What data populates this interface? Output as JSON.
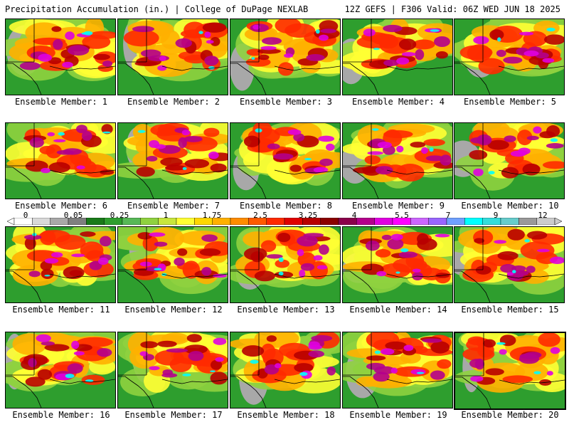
{
  "header": {
    "left_title": "Precipitation Accumulation (in.) | College of DuPage NEXLAB",
    "right_title": "12Z GEFS | F306 Valid: 06Z WED JUN 18 2025"
  },
  "colorbar": {
    "labels": [
      "0",
      "0.05",
      "0.25",
      "1",
      "1.75",
      "2.5",
      "3.25",
      "4",
      "5.5",
      "7",
      "9",
      "12"
    ],
    "colors": [
      "#ffffff",
      "#d9d9d9",
      "#a8a8a8",
      "#7f7f7f",
      "#1a7a1a",
      "#2e9e2e",
      "#57b857",
      "#8fd13f",
      "#c8e63c",
      "#ffff33",
      "#ffd700",
      "#ffb000",
      "#ff8c00",
      "#ff5a00",
      "#ff2a00",
      "#e00000",
      "#b80000",
      "#8b0000",
      "#8b004b",
      "#b4008c",
      "#e000e0",
      "#ff00ff",
      "#cc66ff",
      "#9966ff",
      "#6fa0ff",
      "#00ffff",
      "#33dddd",
      "#66cccc",
      "#999999",
      "#cccccc"
    ]
  },
  "panels": [
    {
      "member": 1,
      "label": "Ensemble Member: 1"
    },
    {
      "member": 2,
      "label": "Ensemble Member: 2"
    },
    {
      "member": 3,
      "label": "Ensemble Member: 3"
    },
    {
      "member": 4,
      "label": "Ensemble Member: 4"
    },
    {
      "member": 5,
      "label": "Ensemble Member: 5"
    },
    {
      "member": 6,
      "label": "Ensemble Member: 6"
    },
    {
      "member": 7,
      "label": "Ensemble Member: 7"
    },
    {
      "member": 8,
      "label": "Ensemble Member: 8"
    },
    {
      "member": 9,
      "label": "Ensemble Member: 9"
    },
    {
      "member": 10,
      "label": "Ensemble Member: 10"
    },
    {
      "member": 11,
      "label": "Ensemble Member: 11"
    },
    {
      "member": 12,
      "label": "Ensemble Member: 12"
    },
    {
      "member": 13,
      "label": "Ensemble Member: 13"
    },
    {
      "member": 14,
      "label": "Ensemble Member: 14"
    },
    {
      "member": 15,
      "label": "Ensemble Member: 15"
    },
    {
      "member": 16,
      "label": "Ensemble Member: 16"
    },
    {
      "member": 17,
      "label": "Ensemble Member: 17"
    },
    {
      "member": 18,
      "label": "Ensemble Member: 18"
    },
    {
      "member": 19,
      "label": "Ensemble Member: 19"
    },
    {
      "member": 20,
      "label": "Ensemble Member: 20",
      "selected": true
    }
  ]
}
